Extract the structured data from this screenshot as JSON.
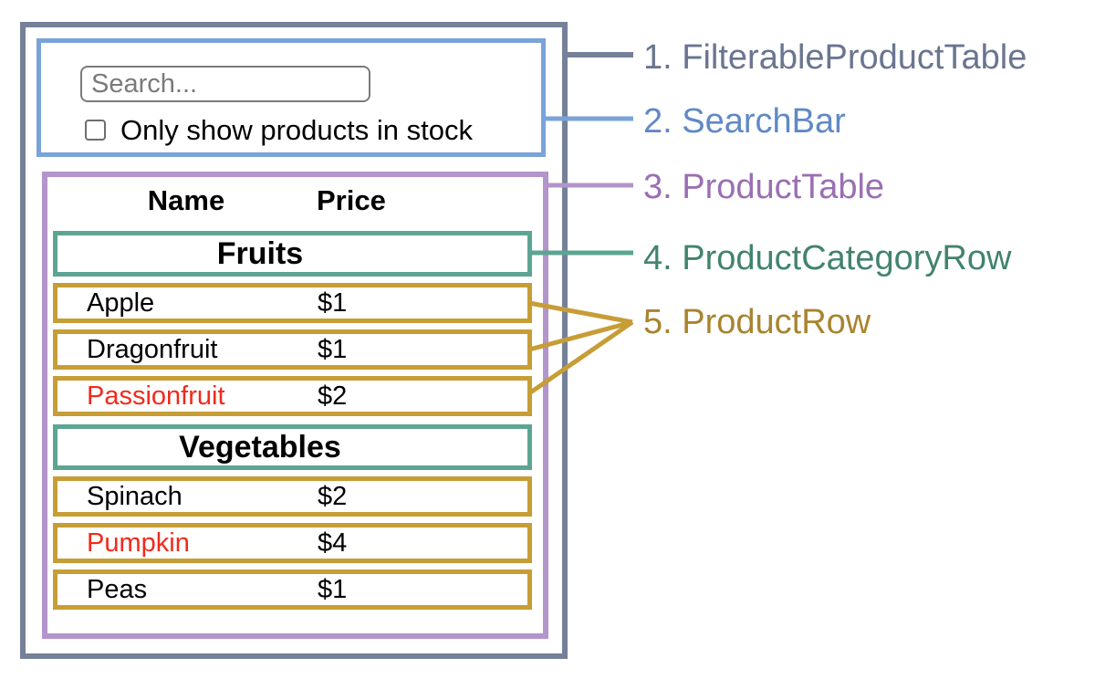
{
  "search_bar": {
    "input_placeholder": "Search...",
    "input_value": "",
    "checkbox_label": "Only show products in stock",
    "checkbox_checked": false
  },
  "product_table": {
    "columns": [
      "Name",
      "Price"
    ],
    "sections": [
      {
        "category": "Fruits",
        "rows": [
          {
            "name": "Apple",
            "price": "$1",
            "out_of_stock": false
          },
          {
            "name": "Dragonfruit",
            "price": "$1",
            "out_of_stock": false
          },
          {
            "name": "Passionfruit",
            "price": "$2",
            "out_of_stock": true
          }
        ]
      },
      {
        "category": "Vegetables",
        "rows": [
          {
            "name": "Spinach",
            "price": "$2",
            "out_of_stock": false
          },
          {
            "name": "Pumpkin",
            "price": "$4",
            "out_of_stock": true
          },
          {
            "name": "Peas",
            "price": "$1",
            "out_of_stock": false
          }
        ]
      }
    ]
  },
  "legend": [
    {
      "number": "1.",
      "label": "FilterableProductTable",
      "color": "#6a7590"
    },
    {
      "number": "2.",
      "label": "SearchBar",
      "color": "#6089c5"
    },
    {
      "number": "3.",
      "label": "ProductTable",
      "color": "#9a6fb3"
    },
    {
      "number": "4.",
      "label": "ProductCategoryRow",
      "color": "#42836f"
    },
    {
      "number": "5.",
      "label": "ProductRow",
      "color": "#a8842f"
    }
  ],
  "colors": {
    "filterable_product_table_border": "#758099",
    "search_bar_border": "#79a3d9",
    "product_table_border": "#b394cb",
    "category_row_border": "#5da593",
    "product_row_border": "#c79d36",
    "out_of_stock_text": "#f02a1d"
  }
}
